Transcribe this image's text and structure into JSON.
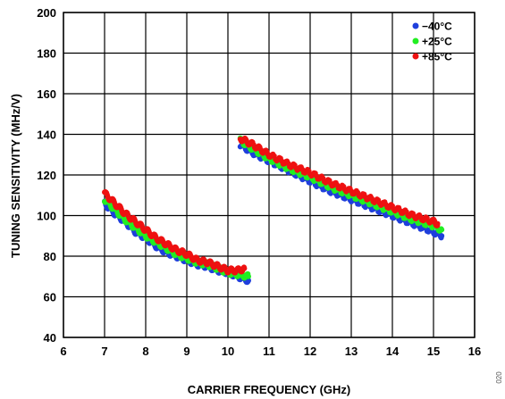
{
  "figure_number": "020",
  "chart_data": {
    "type": "scatter",
    "title": "",
    "xlabel": "CARRIER FREQUENCY (GHz)",
    "ylabel": "TUNING SENSITIVITY (MHz/V)",
    "xlim": [
      6,
      16
    ],
    "ylim": [
      40,
      200
    ],
    "xticks": [
      "6",
      "7",
      "8",
      "9",
      "10",
      "11",
      "12",
      "13",
      "14",
      "15",
      "16"
    ],
    "yticks": [
      "40",
      "60",
      "80",
      "100",
      "120",
      "140",
      "160",
      "180",
      "200"
    ],
    "grid": true,
    "legend_position": "top-right",
    "series": [
      {
        "name": "−40°C",
        "color": "#1f3fdc",
        "segments": [
          {
            "x": [
              7.0,
              7.25,
              7.5,
              7.75,
              8.0,
              8.25,
              8.5,
              8.75,
              9.0,
              9.25,
              9.5,
              9.75,
              10.0,
              10.25,
              10.5
            ],
            "y": [
              106,
              101,
              97,
              92,
              89,
              85,
              82,
              80,
              78,
              76,
              75,
              73,
              72,
              70,
              68
            ]
          },
          {
            "x": [
              10.3,
              10.6,
              11.0,
              11.5,
              12.0,
              12.5,
              13.0,
              13.5,
              14.0,
              14.5,
              15.0,
              15.2
            ],
            "y": [
              135,
              131,
              127,
              122,
              117,
              112,
              108,
              104,
              100,
              96,
              92,
              90
            ]
          }
        ]
      },
      {
        "name": "+25°C",
        "color": "#22ee22",
        "segments": [
          {
            "x": [
              7.0,
              7.25,
              7.5,
              7.75,
              8.0,
              8.25,
              8.5,
              8.75,
              9.0,
              9.25,
              9.5,
              9.75,
              10.0,
              10.25,
              10.5
            ],
            "y": [
              108,
              103,
              98,
              94,
              90,
              87,
              84,
              81,
              79,
              77,
              76,
              74,
              72,
              71,
              70
            ]
          },
          {
            "x": [
              10.3,
              10.6,
              11.0,
              11.5,
              12.0,
              12.5,
              13.0,
              13.5,
              14.0,
              14.5,
              15.0,
              15.2
            ],
            "y": [
              137,
              133,
              128,
              123,
              119,
              114,
              110,
              106,
              102,
              98,
              95,
              93
            ]
          }
        ]
      },
      {
        "name": "+85°C",
        "color": "#ee1111",
        "segments": [
          {
            "x": [
              7.0,
              7.25,
              7.5,
              7.75,
              8.0,
              8.25,
              8.5,
              8.75,
              9.0,
              9.25,
              9.5,
              9.75,
              10.0,
              10.25,
              10.4
            ],
            "y": [
              111,
              106,
              101,
              97,
              93,
              89,
              86,
              83,
              81,
              78,
              77,
              75,
              73,
              73,
              74
            ]
          },
          {
            "x": [
              10.3,
              10.6,
              11.0,
              11.5,
              12.0,
              12.5,
              13.0,
              13.5,
              14.0,
              14.5,
              15.0,
              15.1
            ],
            "y": [
              138,
              135,
              130,
              125,
              121,
              116,
              112,
              108,
              104,
              100,
              97,
              96
            ]
          }
        ]
      }
    ]
  }
}
